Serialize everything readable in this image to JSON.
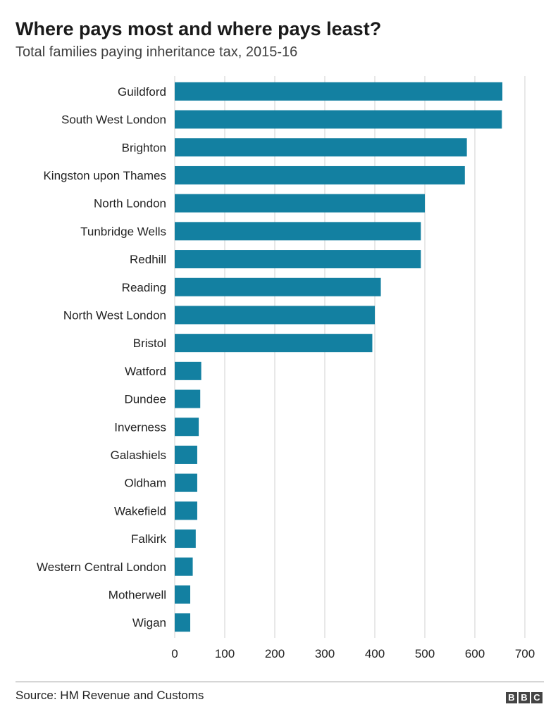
{
  "title": "Where pays most and where pays least?",
  "subtitle": "Total families paying inheritance tax, 2015-16",
  "source": "Source: HM Revenue and Customs",
  "logo_letters": [
    "B",
    "B",
    "C"
  ],
  "colors": {
    "bar": "#1380a1",
    "grid": "#d0d0d0",
    "text": "#222222"
  },
  "chart_data": {
    "type": "bar",
    "orientation": "horizontal",
    "title": "Where pays most and where pays least?",
    "subtitle": "Total families paying inheritance tax, 2015-16",
    "categories": [
      "Guildford",
      "South West London",
      "Brighton",
      "Kingston upon Thames",
      "North London",
      "Tunbridge Wells",
      "Redhill",
      "Reading",
      "North West London",
      "Bristol",
      "Watford",
      "Dundee",
      "Inverness",
      "Galashiels",
      "Oldham",
      "Wakefield",
      "Falkirk",
      "Western Central London",
      "Motherwell",
      "Wigan"
    ],
    "values": [
      655,
      654,
      584,
      580,
      500,
      492,
      492,
      412,
      400,
      395,
      53,
      51,
      48,
      45,
      45,
      45,
      42,
      36,
      31,
      31
    ],
    "xlim": [
      0,
      700
    ],
    "xticks": [
      0,
      100,
      200,
      300,
      400,
      500,
      600,
      700
    ],
    "xlabel": "",
    "ylabel": "",
    "grid": true
  }
}
